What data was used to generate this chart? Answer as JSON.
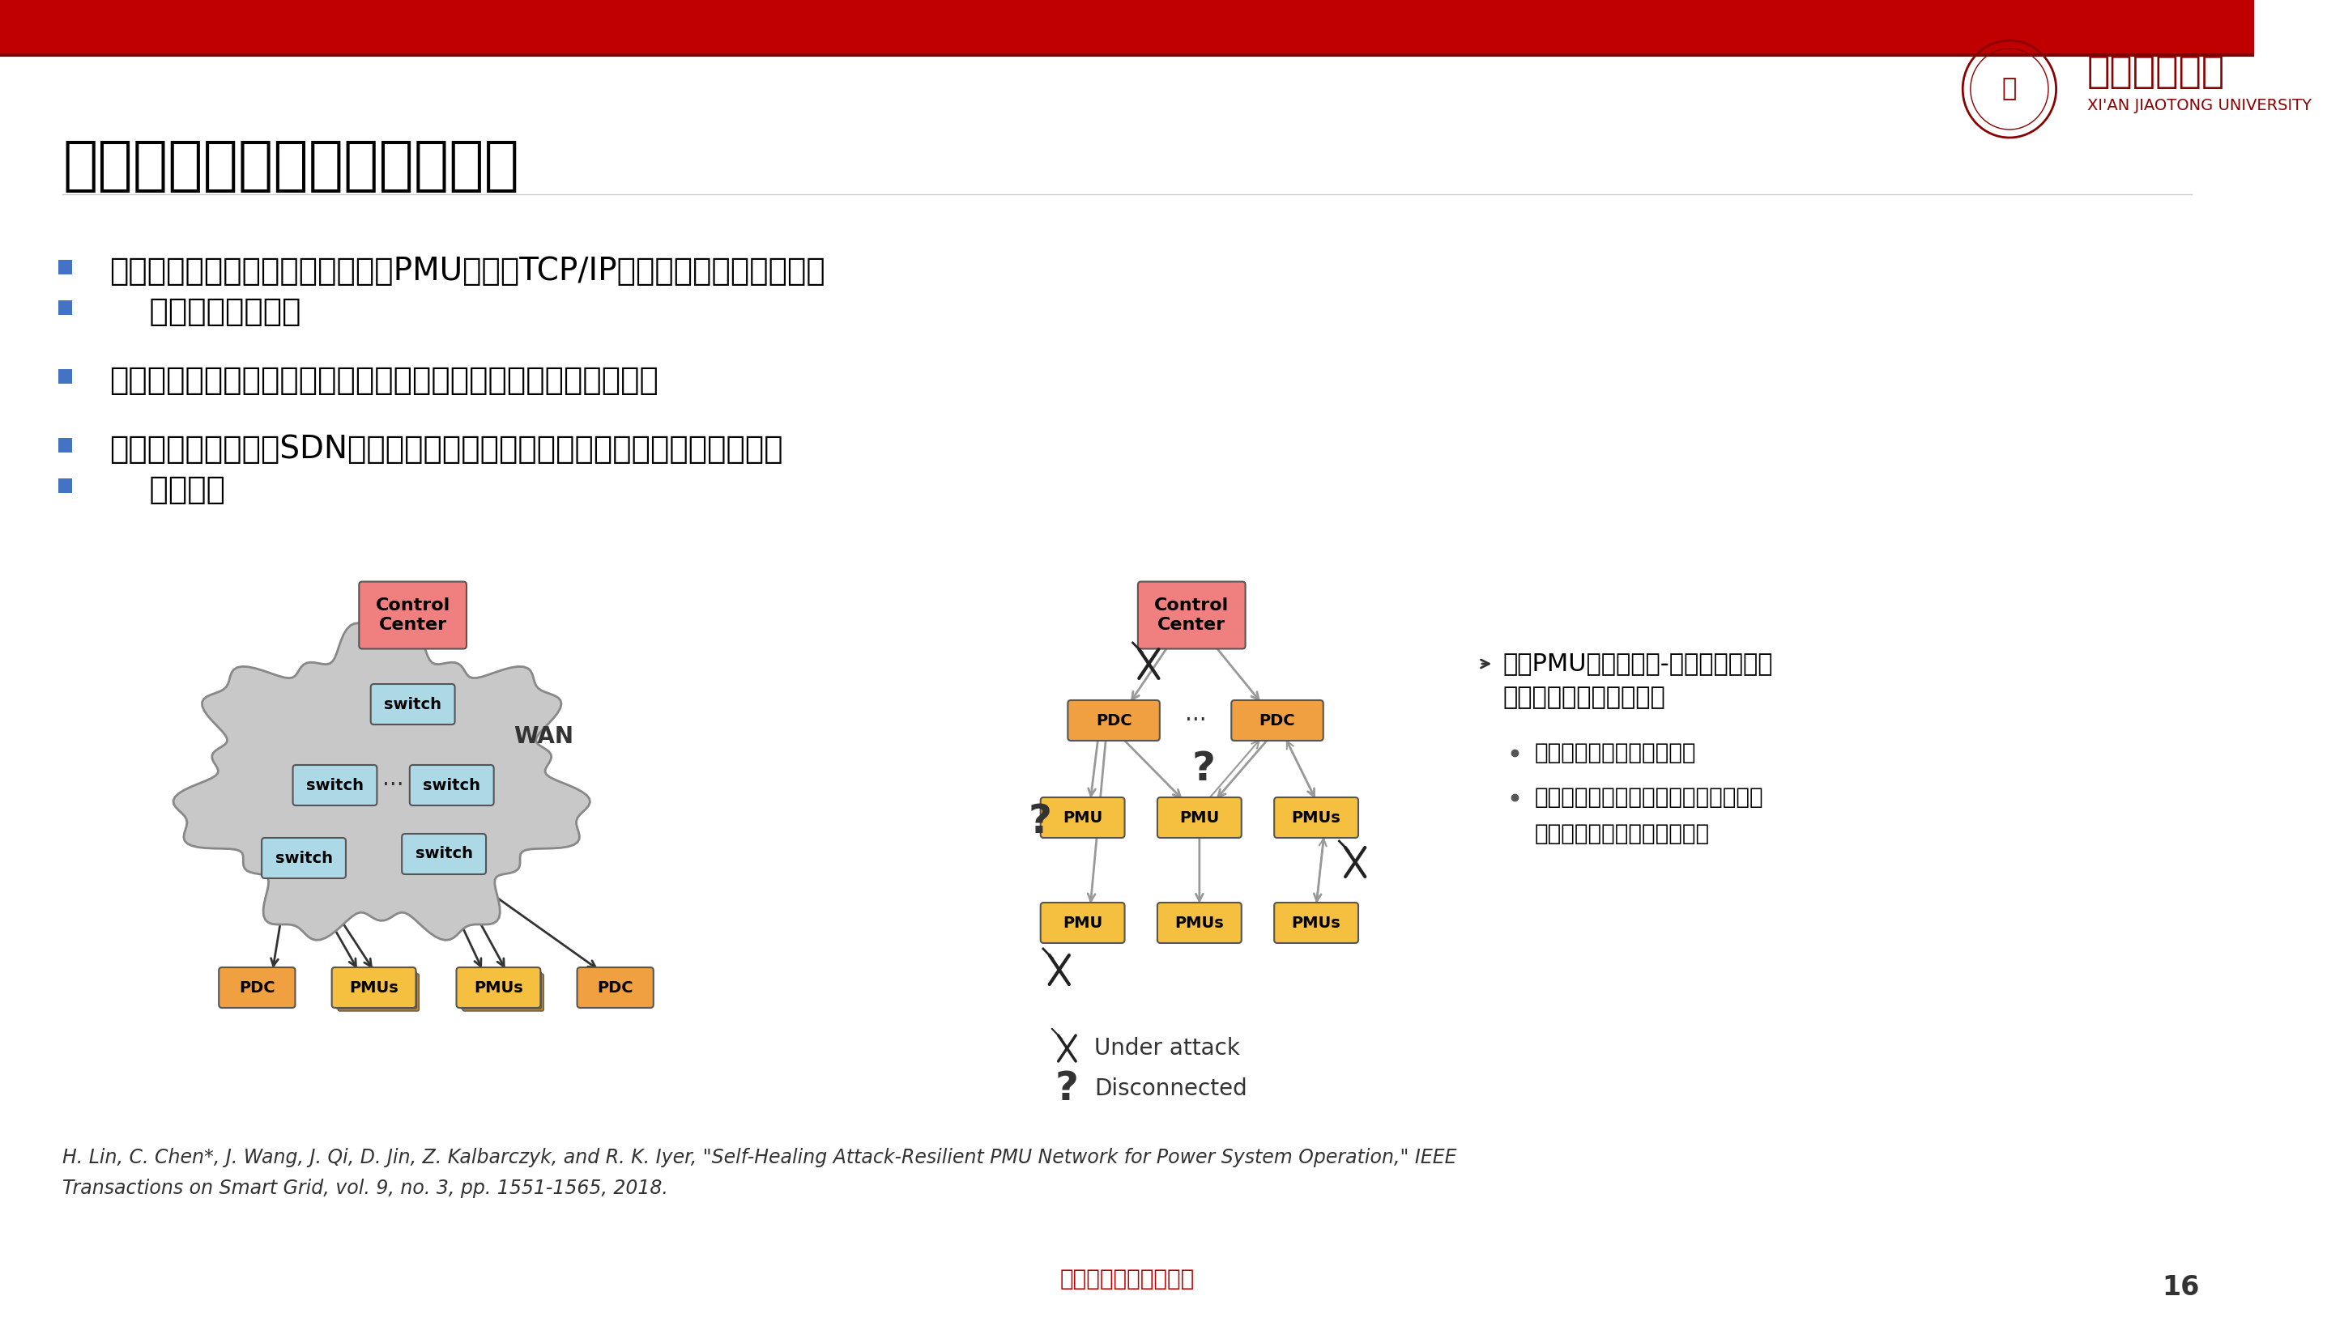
{
  "bg_color": "#ffffff",
  "header_bar_color": "#c00000",
  "title": "信息层：通信路径的自愈恢复",
  "bullet1_line1": "电力系统中部署的各种传感器（如PMU）通过TCP/IP网络连接，可以有效提高",
  "bullet1_line2": "系统态势感知能力",
  "bullet2": "当通信网络节点遭受攻击时，采取隔离措施会导致系统可观性下降",
  "bullet3_line1": "利用软件定义网络（SDN）技术，实现通信路径的自愈恢复，进而实现系统可",
  "bullet3_line2": "观性恢复",
  "right_bullet1_line1": "考虑PMU网络的信息-物理融合特性建",
  "right_bullet1_line2": "立可观性恢复的优化模型",
  "right_sub1": "最小化重新配置网络的开销",
  "right_sub2_line1": "约束包括电力系统可观性，网络设备硬",
  "right_sub2_line2": "件资源约束，网络拓扑约束等",
  "ref_line1": "H. Lin, C. Chen*, J. Wang, J. Qi, D. Jin, Z. Kalbarczyk, and R. K. Iyer, \"Self-Healing Attack-Resilient PMU Network for Power System Operation,\" IEEE",
  "ref_line2": "Transactions on Smart Grid, vol. 9, no. 3, pp. 1551-1565, 2018.",
  "footer_text": "《电工技术学报》发布",
  "page_num": "16",
  "legend_attack": "Under attack",
  "legend_disconn": "Disconnected",
  "cc_color": "#f08080",
  "switch_color": "#add8e6",
  "pdc_color": "#f0a040",
  "pmu_color": "#f5c040",
  "cloud_color": "#cccccc",
  "arrow_color_dark": "#333333",
  "arrow_color_gray": "#999999"
}
